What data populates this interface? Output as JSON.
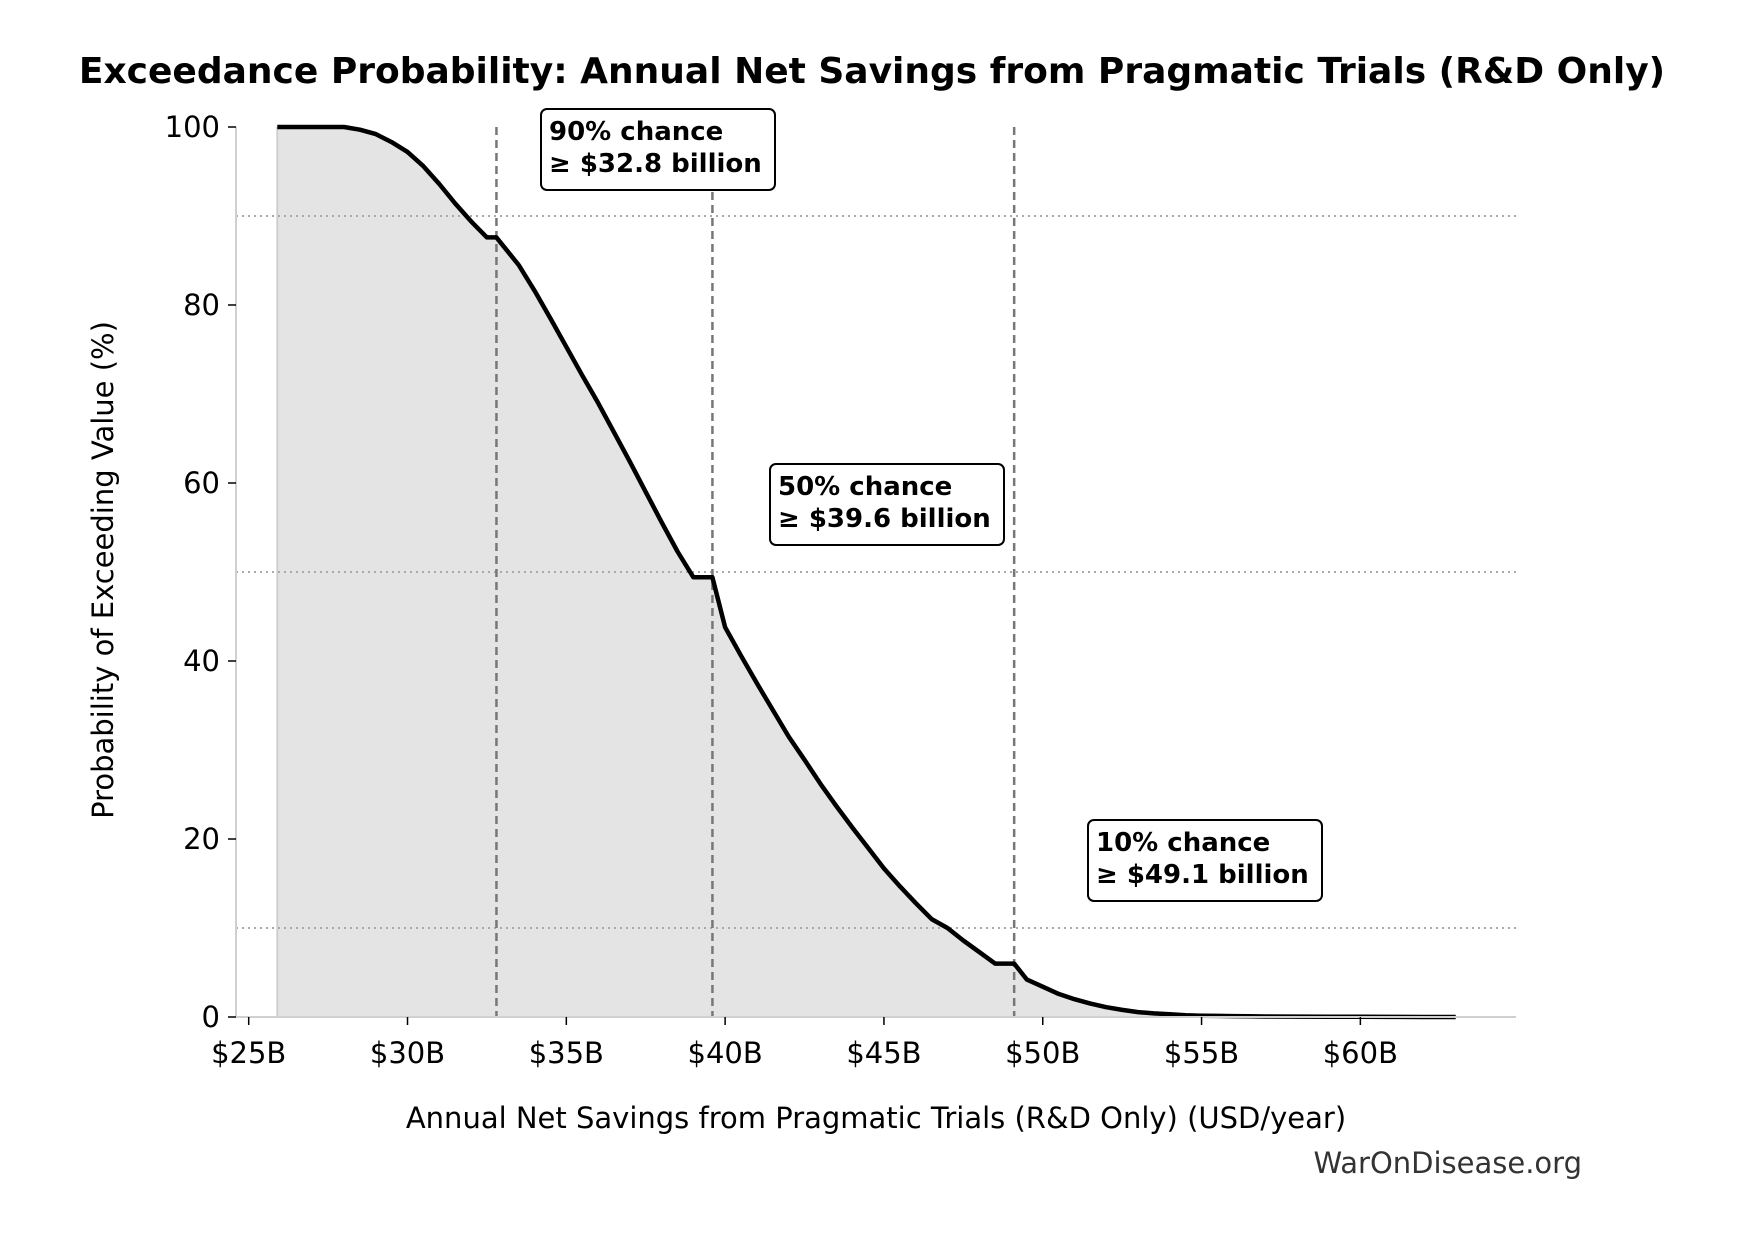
{
  "chart_data": {
    "type": "area",
    "title": "Exceedance Probability: Annual Net Savings from Pragmatic Trials (R&D Only)",
    "xlabel": "Annual Net Savings from Pragmatic Trials (R&D Only) (USD/year)",
    "ylabel": "Probability of Exceeding Value (%)",
    "xlim": [
      24.6,
      64.9
    ],
    "ylim": [
      0,
      100
    ],
    "x_ticks": [
      25,
      30,
      35,
      40,
      45,
      50,
      55,
      60
    ],
    "x_tick_labels": [
      "$25B",
      "$30B",
      "$35B",
      "$40B",
      "$45B",
      "$50B",
      "$55B",
      "$60B"
    ],
    "y_ticks": [
      0,
      20,
      40,
      60,
      80,
      100
    ],
    "y_tick_labels": [
      "0",
      "20",
      "40",
      "60",
      "80",
      "100"
    ],
    "grid": false,
    "series": [
      {
        "x": [
          25.9,
          26.5,
          27.0,
          27.5,
          28.0,
          28.5,
          29.0,
          29.5,
          30.0,
          30.5,
          31.0,
          31.5,
          32.0,
          32.5,
          32.8,
          33.5,
          34.0,
          34.5,
          35.0,
          35.5,
          36.0,
          36.5,
          37.0,
          37.5,
          38.0,
          38.5,
          39.0,
          39.6,
          40.0,
          40.5,
          41.0,
          41.5,
          42.0,
          42.5,
          43.0,
          43.5,
          44.0,
          44.5,
          45.0,
          45.5,
          46.0,
          46.5,
          47.0,
          47.5,
          48.0,
          48.5,
          49.1,
          49.5,
          50.0,
          50.5,
          51.0,
          51.5,
          52.0,
          52.5,
          53.0,
          53.5,
          54.0,
          54.5,
          55.0,
          55.5,
          56.0,
          56.5,
          57.0,
          58.0,
          59.0,
          60.0,
          61.0,
          62.0,
          63.0
        ],
        "y": [
          100,
          100,
          100,
          100,
          100,
          99.7,
          99.2,
          98.3,
          97.2,
          95.6,
          93.6,
          91.4,
          89.4,
          87.6,
          90,
          84.5,
          81.6,
          78.5,
          75.3,
          72.1,
          69.0,
          65.7,
          62.4,
          59.0,
          55.6,
          52.3,
          49.4,
          50,
          43.8,
          40.6,
          37.5,
          34.5,
          31.5,
          28.9,
          26.2,
          23.7,
          21.3,
          19.0,
          16.7,
          14.7,
          12.8,
          11.0,
          10,
          8.6,
          7.3,
          6.0,
          10,
          4.2,
          3.4,
          2.6,
          2.0,
          1.5,
          1.1,
          0.8,
          0.55,
          0.4,
          0.3,
          0.2,
          0.15,
          0.12,
          0.1,
          0.08,
          0.06,
          0.04,
          0.03,
          0.02,
          0.01,
          0.005,
          0.0
        ],
        "color": "#000000"
      }
    ],
    "fill_color": "#e4e4e4",
    "reference_lines": {
      "vertical_x": [
        32.8,
        39.6,
        49.1
      ],
      "horizontal_y": [
        90,
        50,
        10
      ]
    },
    "annotations": [
      {
        "line1": "90% chance",
        "line2": "≥ $32.8 billion"
      },
      {
        "line1": "50% chance",
        "line2": "≥ $39.6 billion"
      },
      {
        "line1": "10% chance",
        "line2": "≥ $49.1 billion"
      }
    ]
  },
  "watermark": "WarOnDisease.org"
}
